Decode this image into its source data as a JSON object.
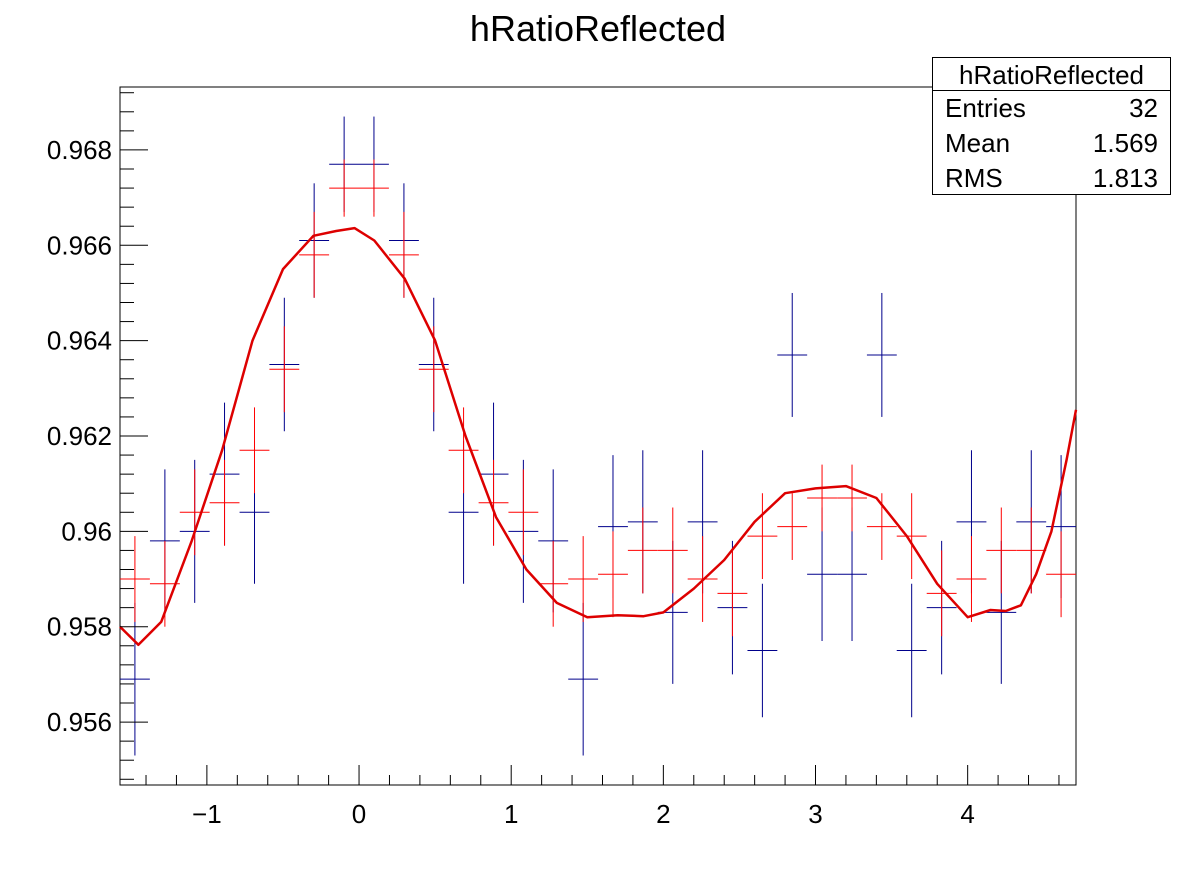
{
  "chart_data": {
    "type": "scatter",
    "title": "hRatioReflected",
    "xlim": [
      -1.571,
      4.712
    ],
    "ylim": [
      0.95468,
      0.96932
    ],
    "x_ticks": [
      -1,
      0,
      1,
      2,
      3,
      4
    ],
    "x_tick_labels": [
      "−1",
      "0",
      "1",
      "2",
      "3",
      "4"
    ],
    "y_ticks": [
      0.956,
      0.958,
      0.96,
      0.962,
      0.964,
      0.966,
      0.968
    ],
    "y_tick_labels": [
      "0.956",
      "0.958",
      "0.96",
      "0.962",
      "0.964",
      "0.966",
      "0.968"
    ],
    "bin_width": 0.1963,
    "series": [
      {
        "color": "#00008b",
        "marker": "errorbar",
        "x": [
          -1.473,
          -1.276,
          -1.08,
          -0.884,
          -0.687,
          -0.491,
          -0.295,
          -0.098,
          0.098,
          0.295,
          0.491,
          0.687,
          0.884,
          1.08,
          1.276,
          1.473,
          1.669,
          1.865,
          2.062,
          2.258,
          2.454,
          2.651,
          2.847,
          3.043,
          3.24,
          3.436,
          3.632,
          3.829,
          4.025,
          4.221,
          4.418,
          4.614
        ],
        "y": [
          0.9569,
          0.9598,
          0.96,
          0.9612,
          0.9604,
          0.9635,
          0.9661,
          0.9677,
          0.9677,
          0.9661,
          0.9635,
          0.9604,
          0.9612,
          0.96,
          0.9598,
          0.9569,
          0.9601,
          0.9602,
          0.9583,
          0.9602,
          0.9584,
          0.9575,
          0.9637,
          0.9591,
          0.9591,
          0.9637,
          0.9575,
          0.9584,
          0.9602,
          0.9583,
          0.9602,
          0.9601
        ],
        "yerr": [
          0.0016,
          0.0015,
          0.0015,
          0.0015,
          0.0015,
          0.0014,
          0.0012,
          0.001,
          0.001,
          0.0012,
          0.0014,
          0.0015,
          0.0015,
          0.0015,
          0.0015,
          0.0016,
          0.0015,
          0.0015,
          0.0015,
          0.0015,
          0.0014,
          0.0014,
          0.0013,
          0.0014,
          0.0014,
          0.0013,
          0.0014,
          0.0014,
          0.0015,
          0.0015,
          0.0015,
          0.0015
        ]
      },
      {
        "color": "#ff0000",
        "marker": "errorbar",
        "x": [
          -1.473,
          -1.276,
          -1.08,
          -0.884,
          -0.687,
          -0.491,
          -0.295,
          -0.098,
          0.098,
          0.295,
          0.491,
          0.687,
          0.884,
          1.08,
          1.276,
          1.473,
          1.669,
          1.865,
          2.062,
          2.258,
          2.454,
          2.651,
          2.847,
          3.043,
          3.24,
          3.436,
          3.632,
          3.829,
          4.025,
          4.221,
          4.418,
          4.614
        ],
        "y": [
          0.959,
          0.9589,
          0.9604,
          0.9606,
          0.9617,
          0.9634,
          0.9658,
          0.9672,
          0.9672,
          0.9658,
          0.9634,
          0.9617,
          0.9606,
          0.9604,
          0.9589,
          0.959,
          0.9591,
          0.9596,
          0.9596,
          0.959,
          0.9587,
          0.9599,
          0.9601,
          0.9607,
          0.9607,
          0.9601,
          0.9599,
          0.9587,
          0.959,
          0.9596,
          0.9596,
          0.9591
        ],
        "yerr": [
          0.0009,
          0.0009,
          0.0009,
          0.0009,
          0.0009,
          0.0009,
          0.0009,
          0.0006,
          0.0006,
          0.0009,
          0.0009,
          0.0009,
          0.0009,
          0.0009,
          0.0009,
          0.0009,
          0.0009,
          0.0009,
          0.0009,
          0.0009,
          0.0009,
          0.0009,
          0.0007,
          0.0007,
          0.0007,
          0.0007,
          0.0009,
          0.0009,
          0.0009,
          0.0009,
          0.0009,
          0.0009
        ]
      },
      {
        "color": "#dd0000",
        "marker": "line",
        "x": [
          -1.571,
          -1.45,
          -1.3,
          -1.1,
          -0.9,
          -0.7,
          -0.5,
          -0.3,
          -0.15,
          -0.03,
          0.1,
          0.3,
          0.5,
          0.7,
          0.9,
          1.1,
          1.3,
          1.5,
          1.7,
          1.87,
          2.0,
          2.2,
          2.4,
          2.6,
          2.8,
          3.0,
          3.2,
          3.4,
          3.6,
          3.8,
          4.0,
          4.15,
          4.25,
          4.35,
          4.45,
          4.55,
          4.65,
          4.712
        ],
        "y": [
          0.958,
          0.95762,
          0.9581,
          0.9598,
          0.9617,
          0.964,
          0.9655,
          0.9662,
          0.9663,
          0.96636,
          0.9661,
          0.9653,
          0.964,
          0.962,
          0.9603,
          0.9592,
          0.9585,
          0.9582,
          0.95824,
          0.95822,
          0.9583,
          0.9588,
          0.9594,
          0.9602,
          0.9608,
          0.9609,
          0.96095,
          0.9607,
          0.9599,
          0.9589,
          0.9582,
          0.95835,
          0.95833,
          0.95845,
          0.9591,
          0.96,
          0.9615,
          0.96255
        ]
      }
    ]
  },
  "stats_box": {
    "title": "hRatioReflected",
    "rows": [
      {
        "label": "Entries",
        "value": "32"
      },
      {
        "label": "Mean",
        "value": "1.569"
      },
      {
        "label": "RMS",
        "value": "1.813"
      }
    ]
  }
}
